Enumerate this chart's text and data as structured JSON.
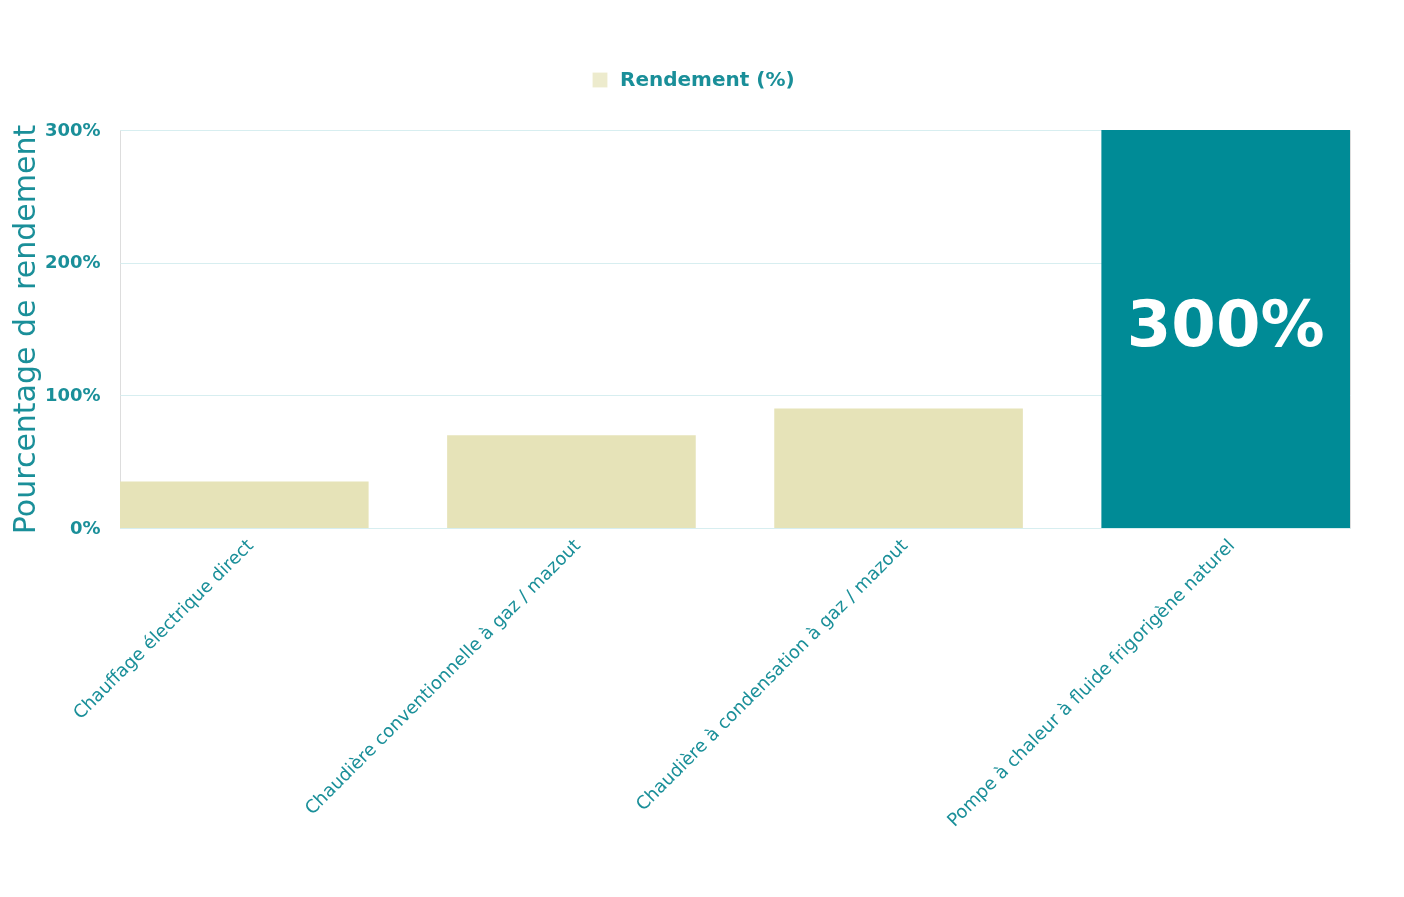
{
  "chart_data": {
    "type": "bar",
    "ylabel": "Pourcentage de rendement",
    "categories": [
      "Chauffage électrique direct",
      "Chaudière conventionnelle à gaz / mazout",
      "Chaudière à condensation à gaz / mazout",
      "Pompe à chaleur à fluide frigorigène naturel"
    ],
    "series": [
      {
        "name": "Rendement (%)",
        "color": "#e6e3b8",
        "colors": [
          "#e6e3b8",
          "#e6e3b8",
          "#e6e3b8",
          "#008b96"
        ],
        "values": [
          35,
          70,
          90,
          300
        ],
        "value_labels": [
          null,
          null,
          null,
          "300%"
        ]
      }
    ],
    "ylim": [
      0,
      300
    ],
    "yticks": [
      {
        "value": 0,
        "label": "0%"
      },
      {
        "value": 100,
        "label": "100%"
      },
      {
        "value": 200,
        "label": "200%"
      },
      {
        "value": 300,
        "label": "300%"
      }
    ],
    "grid": "y",
    "legend": "top"
  }
}
